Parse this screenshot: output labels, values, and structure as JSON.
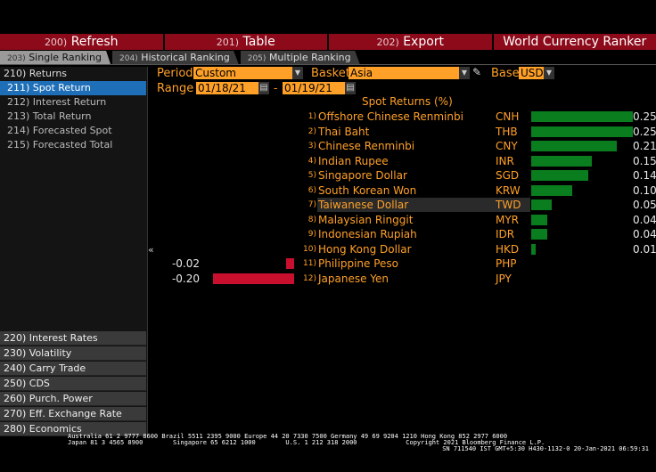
{
  "toolbar": {
    "buttons": [
      {
        "num": "200)",
        "label": "Refresh"
      },
      {
        "num": "201)",
        "label": "Table"
      },
      {
        "num": "202)",
        "label": "Export"
      }
    ],
    "title": "World Currency Ranker"
  },
  "tabs": [
    {
      "num": "203)",
      "label": "Single Ranking",
      "active": true
    },
    {
      "num": "204)",
      "label": "Historical Ranking"
    },
    {
      "num": "205)",
      "label": "Multiple Ranking"
    }
  ],
  "sidebar": {
    "top": [
      {
        "label": "210) Returns"
      },
      {
        "label": "211) Spot Return",
        "selected": true
      },
      {
        "label": "212) Interest Return"
      },
      {
        "label": "213) Total Return"
      },
      {
        "label": "214) Forecasted Spot"
      },
      {
        "label": "215) Forecasted Total"
      }
    ],
    "bottom": [
      {
        "label": "220) Interest Rates"
      },
      {
        "label": "230) Volatility"
      },
      {
        "label": "240) Carry Trade"
      },
      {
        "label": "250) CDS"
      },
      {
        "label": "260) Purch. Power"
      },
      {
        "label": "270) Eff. Exchange Rate"
      },
      {
        "label": "280) Economics"
      }
    ],
    "collapse_glyph": "«"
  },
  "controls": {
    "period_label": "Period",
    "period_value": "Custom",
    "basket_label": "Basket",
    "basket_value": "Asia",
    "base_label": "Base",
    "base_value": "USD",
    "range_label": "Range",
    "range_from": "01/18/21",
    "range_sep": "-",
    "range_to": "01/19/21"
  },
  "chart_data": {
    "type": "bar",
    "title": "Spot Returns (%)",
    "colors": {
      "positive": "#0a7d1e",
      "negative": "#c8102e"
    },
    "rows": [
      {
        "rank": "1)",
        "name": "Offshore Chinese Renminbi",
        "code": "CNH",
        "value": 0.25,
        "label": "0.25"
      },
      {
        "rank": "2)",
        "name": "Thai Baht",
        "code": "THB",
        "value": 0.25,
        "label": "0.25"
      },
      {
        "rank": "3)",
        "name": "Chinese Renminbi",
        "code": "CNY",
        "value": 0.21,
        "label": "0.21"
      },
      {
        "rank": "4)",
        "name": "Indian Rupee",
        "code": "INR",
        "value": 0.15,
        "label": "0.15"
      },
      {
        "rank": "5)",
        "name": "Singapore Dollar",
        "code": "SGD",
        "value": 0.14,
        "label": "0.14"
      },
      {
        "rank": "6)",
        "name": "South Korean Won",
        "code": "KRW",
        "value": 0.1,
        "label": "0.10"
      },
      {
        "rank": "7)",
        "name": "Taiwanese Dollar",
        "code": "TWD",
        "value": 0.05,
        "label": "0.05",
        "highlighted": true
      },
      {
        "rank": "8)",
        "name": "Malaysian Ringgit",
        "code": "MYR",
        "value": 0.04,
        "label": "0.04"
      },
      {
        "rank": "9)",
        "name": "Indonesian Rupiah",
        "code": "IDR",
        "value": 0.04,
        "label": "0.04"
      },
      {
        "rank": "10)",
        "name": "Hong Kong Dollar",
        "code": "HKD",
        "value": 0.01,
        "label": "0.01"
      },
      {
        "rank": "11)",
        "name": "Philippine Peso",
        "code": "PHP",
        "value": -0.02,
        "label": "-0.02"
      },
      {
        "rank": "12)",
        "name": "Japanese Yen",
        "code": "JPY",
        "value": -0.2,
        "label": "-0.20"
      }
    ]
  },
  "footer": {
    "line1": "Australia 61 2 9777 8600 Brazil 5511 2395 9000 Europe 44 20 7330 7500 Germany 49 69 9204 1210 Hong Kong 852 2977 6000",
    "line2": "Japan 81 3 4565 8900        Singapore 65 6212 1000        U.S. 1 212 318 2000             Copyright 2021 Bloomberg Finance L.P.",
    "line3": "SN 711540 IST  GMT+5:30 H430-1132-0 20-Jan-2021 06:59:31"
  }
}
